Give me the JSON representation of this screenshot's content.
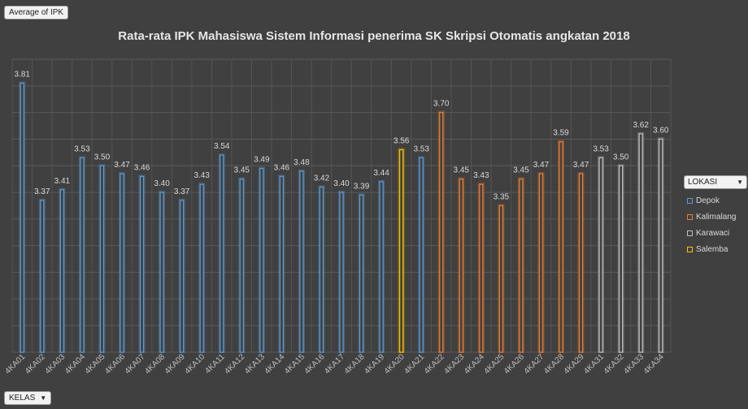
{
  "field_button": "Average of IPK",
  "kelas_button": "KELAS",
  "chart_data": {
    "type": "bar",
    "title": "Rata-rata IPK Mahasiswa Sistem Informasi penerima SK Skripsi Otomatis angkatan 2018",
    "xlabel": "",
    "ylabel": "",
    "ylim": [
      2.8,
      3.9
    ],
    "grid": true,
    "legend_position": "right",
    "legend_title": "LOKASI",
    "series_colors": {
      "Depok": "#5b9bd5",
      "Kalimalang": "#ed7d31",
      "Karawaci": "#bfbfbf",
      "Salemba": "#ffc000"
    },
    "categories": [
      "4KA01",
      "4KA02",
      "4KA03",
      "4KA04",
      "4KA05",
      "4KA06",
      "4KA07",
      "4KA08",
      "4KA09",
      "4KA10",
      "4KA11",
      "4KA12",
      "4KA13",
      "4KA14",
      "4KA15",
      "4KA16",
      "4KA17",
      "4KA18",
      "4KA19",
      "4KA20",
      "4KA21",
      "4KA22",
      "4KA23",
      "4KA24",
      "4KA25",
      "4KA26",
      "4KA27",
      "4KA28",
      "4KA29",
      "4KA31",
      "4KA32",
      "4KA33",
      "4KA34"
    ],
    "series": [
      {
        "name": "Depok",
        "values": [
          3.81,
          3.37,
          3.41,
          3.53,
          3.5,
          3.47,
          3.46,
          3.4,
          3.37,
          3.43,
          3.54,
          3.45,
          3.49,
          3.46,
          3.48,
          3.42,
          3.4,
          3.39,
          3.44,
          null,
          3.53,
          null,
          null,
          null,
          null,
          null,
          null,
          null,
          null,
          null,
          null,
          null,
          null
        ]
      },
      {
        "name": "Kalimalang",
        "values": [
          null,
          null,
          null,
          null,
          null,
          null,
          null,
          null,
          null,
          null,
          null,
          null,
          null,
          null,
          null,
          null,
          null,
          null,
          null,
          null,
          null,
          3.7,
          3.45,
          3.43,
          3.35,
          3.45,
          3.47,
          3.59,
          3.47,
          null,
          null,
          null,
          null
        ]
      },
      {
        "name": "Karawaci",
        "values": [
          null,
          null,
          null,
          null,
          null,
          null,
          null,
          null,
          null,
          null,
          null,
          null,
          null,
          null,
          null,
          null,
          null,
          null,
          null,
          null,
          null,
          null,
          null,
          null,
          null,
          null,
          null,
          null,
          null,
          3.53,
          3.5,
          3.62,
          3.6
        ]
      },
      {
        "name": "Salemba",
        "values": [
          null,
          null,
          null,
          null,
          null,
          null,
          null,
          null,
          null,
          null,
          null,
          null,
          null,
          null,
          null,
          null,
          null,
          null,
          null,
          3.56,
          null,
          null,
          null,
          null,
          null,
          null,
          null,
          null,
          null,
          null,
          null,
          null,
          null
        ]
      }
    ]
  }
}
